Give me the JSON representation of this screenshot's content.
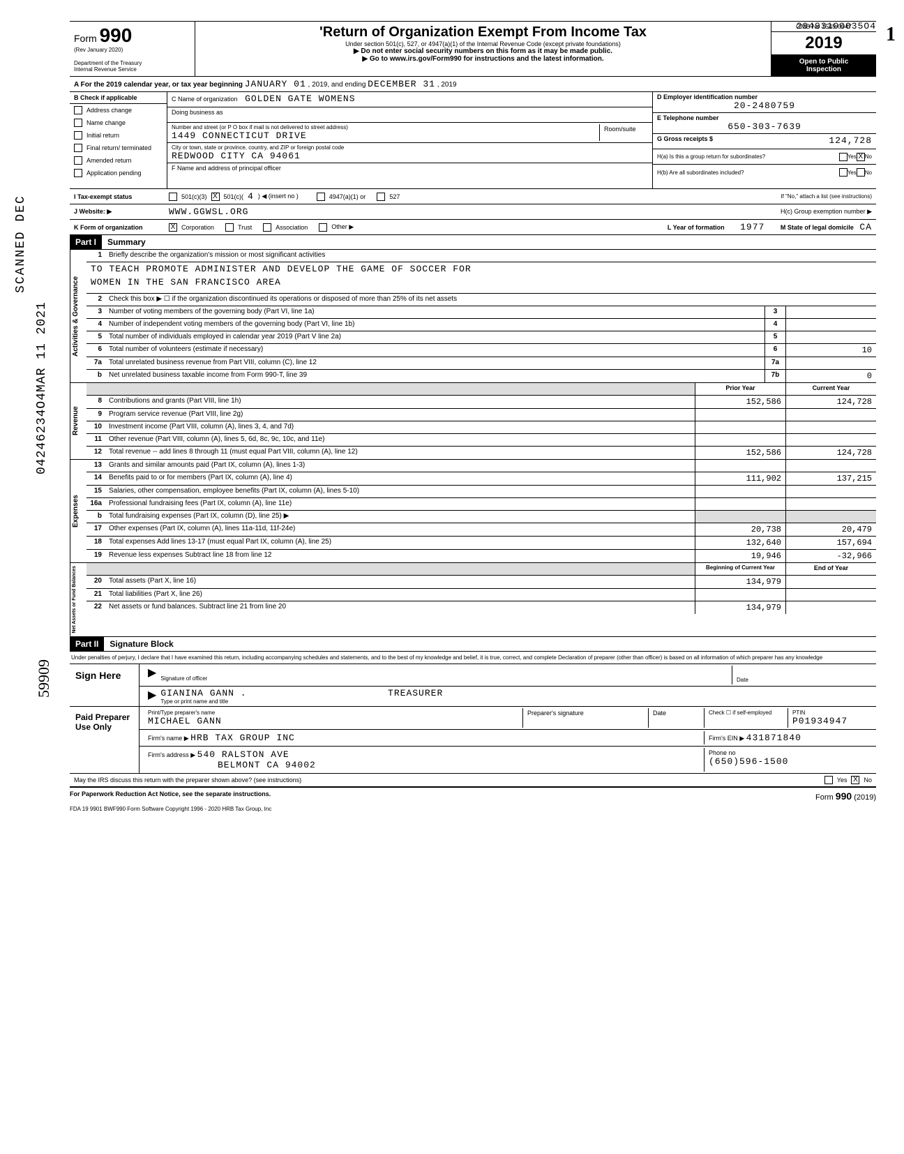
{
  "top_stamp": "29493100035O4",
  "page_side_num": "1",
  "side_vertical_1": "SCANNED DEC",
  "side_vertical_2": "04246234O4MAR 11 2021",
  "side_vertical_3": "59909",
  "header": {
    "form_prefix": "Form",
    "form_number": "990",
    "rev": "(Rev January 2020)",
    "dept": "Department of the Treasury",
    "irs": "Internal Revenue Service",
    "title": "'Return of Organization Exempt From Income Tax",
    "subtitle": "Under section 501(c), 527, or 4947(a)(1) of the Internal Revenue Code (except private foundations)",
    "line2": "▶ Do not enter social security numbers on this form as it may be made public.",
    "line3": "▶ Go to www.irs.gov/Form990 for instructions and the latest information.",
    "omb": "OMB No 1545-0047",
    "year": "2019",
    "open": "Open to Public",
    "inspection": "Inspection"
  },
  "lineA": {
    "label": "A  For the 2019 calendar year, or tax year beginning",
    "begin": "JANUARY  01",
    "mid": ", 2019, and ending",
    "end": "DECEMBER  31",
    "endyear": ", 2019"
  },
  "sectionB": {
    "header": "B Check if applicable",
    "items": [
      "Address change",
      "Name change",
      "Initial return",
      "Final return/ terminated",
      "Amended return",
      "Application pending"
    ]
  },
  "sectionC": {
    "c_label": "C Name of organization",
    "c_value": "GOLDEN GATE WOMENS",
    "dba": "Doing business as",
    "street_label": "Number and street (or P O  box if mail is not delivered to street address)",
    "room": "Room/suite",
    "street": "1449 CONNECTICUT DRIVE",
    "city_label": "City or town, state or province, country, and ZIP or foreign postal code",
    "city": "REDWOOD CITY CA 94061",
    "f_label": "F   Name and address of principal officer"
  },
  "sectionD": {
    "d_label": "D Employer identification number",
    "d_value": "20-2480759",
    "e_label": "E Telephone number",
    "e_value": "650-303-7639",
    "g_label": "G Gross receipts $",
    "g_value": "124,728",
    "ha_label": "H(a)  Is this a group return for subordinates?",
    "ha_yes": "Yes",
    "ha_no": "No",
    "hb_label": "H(b)  Are all subordinates included?",
    "hb_yes": "Yes",
    "hb_no": "No",
    "hb_note": "If \"No,\" attach a list (see instructions)",
    "hc_label": "H(c)   Group exemption number  ▶"
  },
  "statusI": {
    "label": "I    Tax-exempt status",
    "opt1": "501(c)(3)",
    "opt2": "501(c)(",
    "opt2_num": "4",
    "opt2_suffix": ") ◀ (insert no )",
    "opt3": "4947(a)(1) or",
    "opt4": "527"
  },
  "lineJ": {
    "label": "J  Website: ▶",
    "value": "WWW.GGWSL.ORG"
  },
  "lineK": {
    "label": "K  Form of organization",
    "corp": "Corporation",
    "trust": "Trust",
    "assoc": "Association",
    "other": "Other ▶",
    "l_label": "L Year of formation",
    "l_value": "1977",
    "m_label": "M  State of legal domicile",
    "m_value": "CA"
  },
  "partI": {
    "header": "Part I",
    "title": "Summary"
  },
  "activities": {
    "label": "Activities & Governance",
    "line1": "Briefly describe the organization's mission or most significant activities",
    "mission1": "TO TEACH PROMOTE ADMINISTER AND DEVELOP THE GAME OF SOCCER FOR",
    "mission2": "WOMEN IN THE SAN FRANCISCO AREA",
    "line2": "Check this box ▶ ☐ if the organization discontinued its operations or disposed of more than 25% of its net assets",
    "line3": "Number of voting members of the governing body (Part VI, line 1a)",
    "line4": "Number of independent voting members of the governing body (Part VI, line 1b)",
    "line5": "Total number of individuals employed in calendar year 2019 (Part V  line 2a)",
    "line6": "Total number of volunteers (estimate if necessary)",
    "line6_val": "10",
    "line7a": "Total unrelated business revenue from Part VIII, column (C), line 12",
    "line7b": "Net unrelated business taxable income from Form 990-T, line 39",
    "line7b_val": "0"
  },
  "revenue": {
    "label": "Revenue",
    "prior_header": "Prior Year",
    "current_header": "Current Year",
    "line8": "Contributions and grants (Part VIII, line 1h)",
    "line8_prior": "152,586",
    "line8_curr": "124,728",
    "line9": "Program service revenue (Part VIII, line 2g)",
    "line10": "Investment income (Part VIII, column (A), lines 3, 4, and 7d)",
    "line11": "Other revenue (Part VIII, column (A), lines 5, 6d, 8c, 9c, 10c, and 11e)",
    "line12": "Total revenue -- add lines 8 through 11 (must equal Part VIII, column (A), line 12)",
    "line12_prior": "152,586",
    "line12_curr": "124,728"
  },
  "expenses": {
    "label": "Expenses",
    "line13": "Grants and similar amounts paid (Part IX, column (A), lines 1-3)",
    "line14": "Benefits paid to or for members (Part IX, column (A), line 4)",
    "line14_prior": "111,902",
    "line14_curr": "137,215",
    "line15": "Salaries, other compensation, employee benefits (Part IX, column (A), lines 5-10)",
    "line16a": "Professional fundraising fees (Part IX, column (A), line 11e)",
    "line16b": "Total fundraising expenses (Part IX, column (D), line 25)   ▶",
    "line17": "Other expenses (Part IX, column (A), lines 11a-11d, 11f-24e)",
    "line17_prior": "20,738",
    "line17_curr": "20,479",
    "line18": "Total expenses  Add lines 13-17 (must equal Part IX, column (A), line 25)",
    "line18_prior": "132,640",
    "line18_curr": "157,694",
    "line19": "Revenue less expenses  Subtract line 18 from line 12",
    "line19_prior": "19,946",
    "line19_curr": "-32,966"
  },
  "netassets": {
    "label": "Net Assets or Fund Balances",
    "begin_header": "Beginning of Current Year",
    "end_header": "End of Year",
    "line20": "Total assets (Part X, line 16)",
    "line20_begin": "134,979",
    "line21": "Total liabilities (Part X, line 26)",
    "line22": "Net assets or fund balances. Subtract line 21 from line 20",
    "line22_begin": "134,979"
  },
  "partII": {
    "header": "Part II",
    "title": "Signature Block"
  },
  "perjury": "Under penalties of perjury, I declare that I have examined this return, including accompanying schedules and statements, and to the best of my knowledge and belief, it is true, correct, and complete  Declaration of preparer (other than officer) is based on all information of which preparer has any knowledge",
  "sign": {
    "here": "Sign Here",
    "sig_officer": "Signature of officer",
    "date": "Date",
    "name": "GIANINA GANN  .",
    "title_role": "TREASURER",
    "type_name": "Type or print name and title"
  },
  "paid": {
    "label": "Paid Preparer Use Only",
    "print_label": "Print/Type preparer's name",
    "print_value": "MICHAEL GANN",
    "sig_label": "Preparer's signature",
    "date_label": "Date",
    "check_label": "Check ☐ if self-employed",
    "ptin_label": "PTIN",
    "ptin_value": "P01934947",
    "firm_name_label": "Firm's name  ▶",
    "firm_name": "HRB TAX GROUP INC",
    "firm_ein_label": "Firm's EIN ▶",
    "firm_ein": "431871840",
    "firm_addr_label": "Firm's address  ▶",
    "firm_addr1": "540 RALSTON AVE",
    "firm_addr2": "BELMONT CA 94002",
    "phone_label": "Phone no",
    "phone": "(650)596-1500"
  },
  "discuss": {
    "text": "May the IRS discuss this return with the preparer shown above? (see instructions)",
    "yes": "Yes",
    "no": "No"
  },
  "footer": {
    "paperwork": "For Paperwork Reduction Act Notice, see the separate instructions.",
    "fda": "FDA     19  9901       BWF990        Form Software Copyright 1996 - 2020 HRB Tax Group, Inc",
    "form": "Form",
    "form_num": "990",
    "form_year": "(2019)"
  }
}
